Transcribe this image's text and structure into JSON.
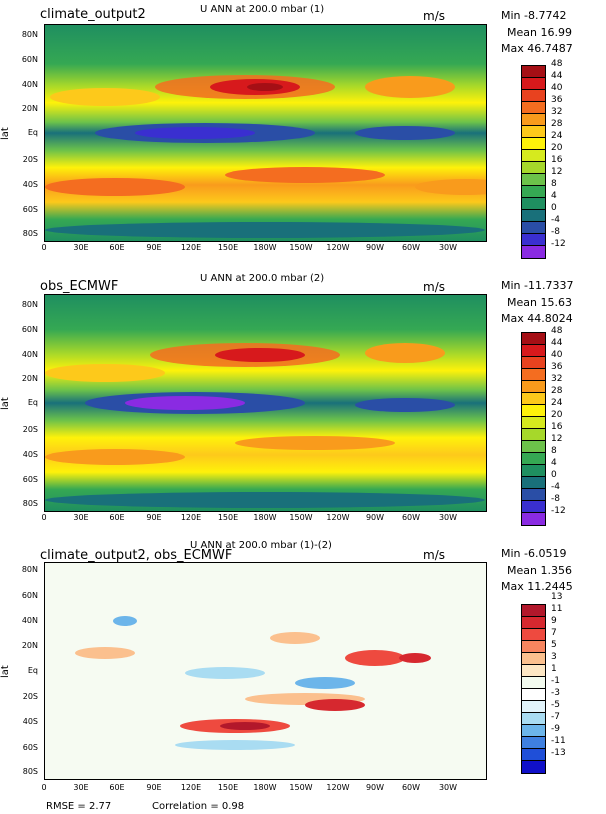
{
  "panels": [
    {
      "title": "climate_output2",
      "variable_title": "U ANN at 200.0 mbar (1)",
      "units": "m/s",
      "stats": {
        "min": "Min -8.7742",
        "mean": "Mean 16.99",
        "max": "Max 46.7487"
      },
      "colorbar": {
        "labels": [
          "48",
          "44",
          "40",
          "36",
          "32",
          "28",
          "24",
          "20",
          "16",
          "12",
          "8",
          "4",
          "0",
          "-4",
          "-8",
          "-12"
        ],
        "colors": [
          "#a50f15",
          "#d7191c",
          "#e8421f",
          "#f46d20",
          "#f99b1c",
          "#fdc91b",
          "#fef20a",
          "#d6ea1e",
          "#a6d82a",
          "#6cc24a",
          "#35a853",
          "#1f8f60",
          "#19707a",
          "#2a4ea6",
          "#3a2fd0",
          "#8a2be2"
        ]
      }
    },
    {
      "title": "obs_ECMWF",
      "variable_title": "U ANN at 200.0 mbar (2)",
      "units": "m/s",
      "stats": {
        "min": "Min -11.7337",
        "mean": "Mean 15.63",
        "max": "Max 44.8024"
      },
      "colorbar": {
        "labels": [
          "48",
          "44",
          "40",
          "36",
          "32",
          "28",
          "24",
          "20",
          "16",
          "12",
          "8",
          "4",
          "0",
          "-4",
          "-8",
          "-12"
        ],
        "colors": [
          "#a50f15",
          "#d7191c",
          "#e8421f",
          "#f46d20",
          "#f99b1c",
          "#fdc91b",
          "#fef20a",
          "#d6ea1e",
          "#a6d82a",
          "#6cc24a",
          "#35a853",
          "#1f8f60",
          "#19707a",
          "#2a4ea6",
          "#3a2fd0",
          "#8a2be2"
        ]
      }
    },
    {
      "title": "climate_output2, obs_ECMWF",
      "variable_title": "U ANN at 200.0 mbar (1)-(2)",
      "units": "m/s",
      "stats": {
        "min": "Min -6.0519",
        "mean": "Mean 1.356",
        "max": "Max 11.2445"
      },
      "colorbar": {
        "labels": [
          "13",
          "11",
          "9",
          "7",
          "5",
          "3",
          "1",
          "-1",
          "-3",
          "-5",
          "-7",
          "-9",
          "-11",
          "-13"
        ],
        "colors": [
          "#b2182b",
          "#d6282f",
          "#ee4a3f",
          "#f7855f",
          "#fbc08e",
          "#fde7c4",
          "#f3fbef",
          "#ffffff",
          "#e2f4fb",
          "#a9dcf2",
          "#6cb5ea",
          "#3f80e0",
          "#1f4fd8",
          "#1010c8"
        ]
      }
    }
  ],
  "axes": {
    "lat_label": "lat",
    "y_ticks": [
      "80N",
      "60N",
      "40N",
      "20N",
      "Eq",
      "20S",
      "40S",
      "60S",
      "80S"
    ],
    "x_ticks": [
      "0",
      "30E",
      "60E",
      "90E",
      "120E",
      "150E",
      "180W",
      "150W",
      "120W",
      "90W",
      "60W",
      "30W"
    ]
  },
  "footer": {
    "rmse": "RMSE = 2.77",
    "correlation": "Correlation = 0.98"
  }
}
